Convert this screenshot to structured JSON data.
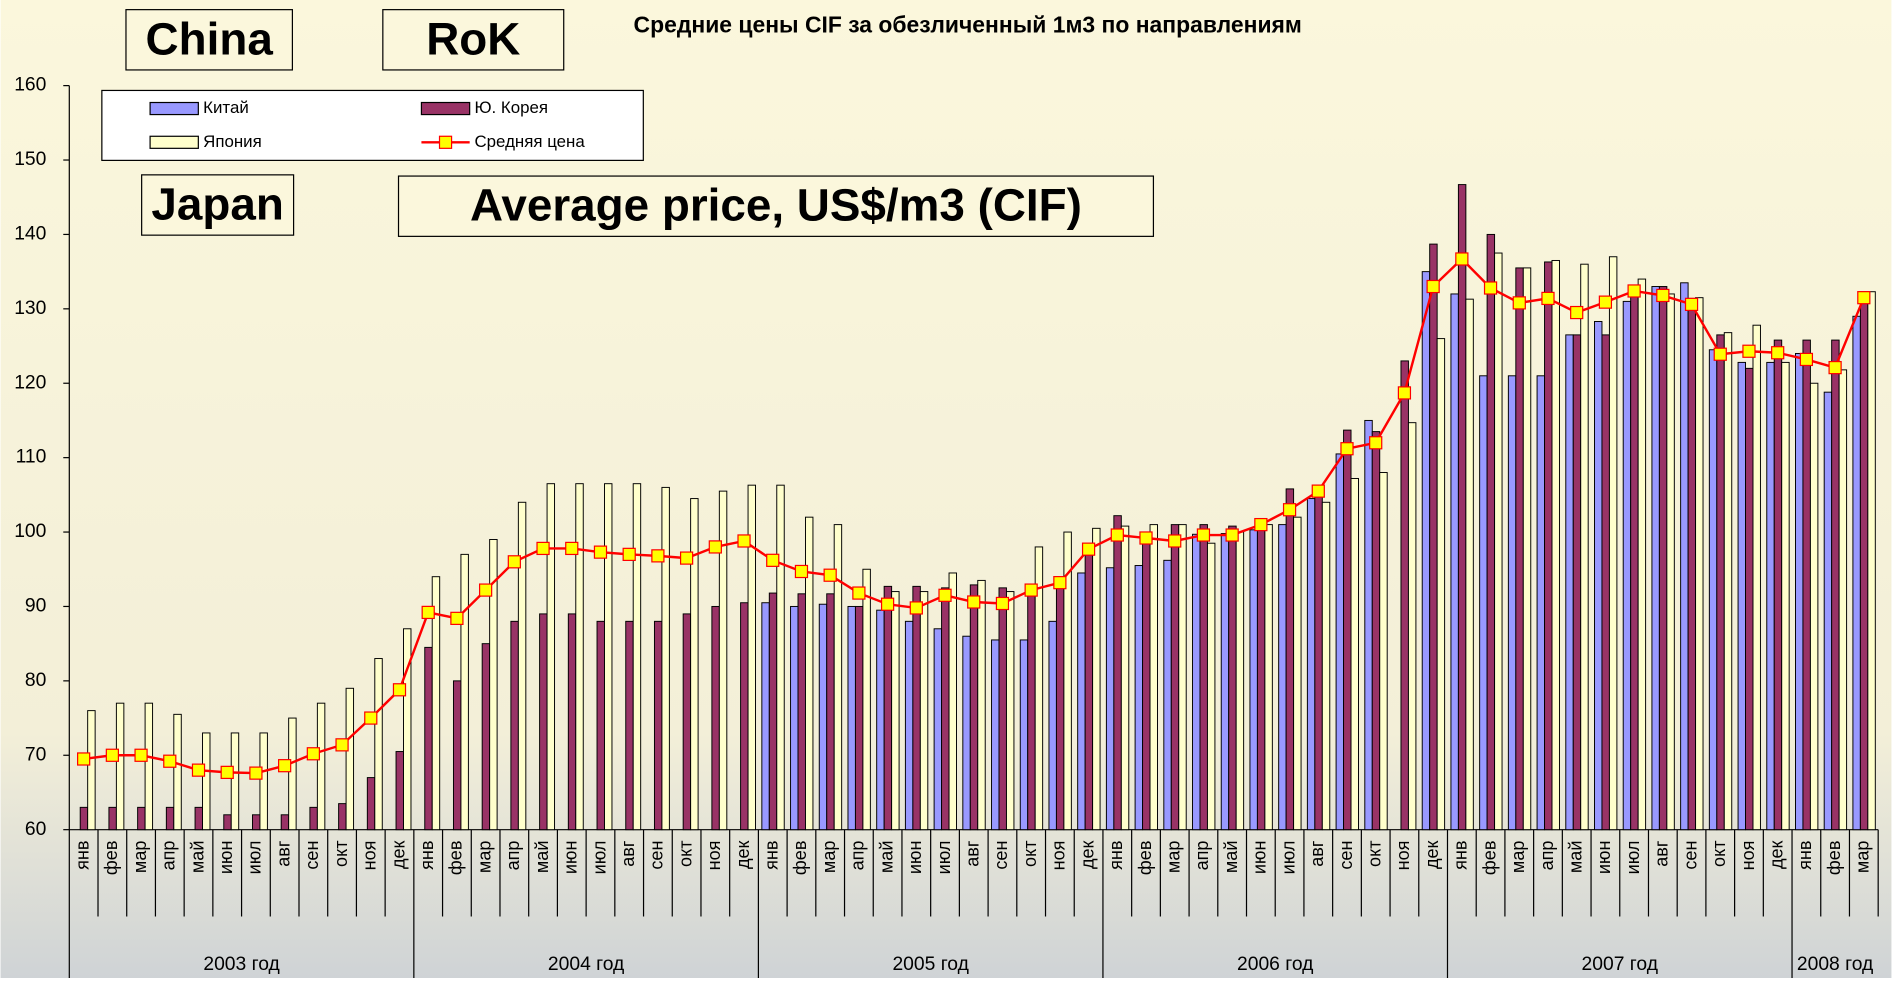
{
  "chart_data": {
    "type": "bar_line",
    "title": "Средние цены CIF за обезличенный 1м3 по направлениям",
    "annotations": [
      "China",
      "RoK",
      "Japan",
      "Average price, US$/m3 (CIF)"
    ],
    "categories": [
      "янв",
      "фев",
      "мар",
      "апр",
      "май",
      "июн",
      "июл",
      "авг",
      "сен",
      "окт",
      "ноя",
      "дек",
      "янв",
      "фев",
      "мар",
      "апр",
      "май",
      "июн",
      "июл",
      "авг",
      "сен",
      "окт",
      "ноя",
      "дек",
      "янв",
      "фев",
      "мар",
      "апр",
      "май",
      "июн",
      "июл",
      "авг",
      "сен",
      "окт",
      "ноя",
      "дек",
      "янв",
      "фев",
      "мар",
      "апр",
      "май",
      "июн",
      "июл",
      "авг",
      "сен",
      "окт",
      "ноя",
      "дек",
      "янв",
      "фев",
      "мар",
      "апр",
      "май",
      "июн",
      "июл",
      "авг",
      "сен",
      "окт",
      "ноя",
      "дек",
      "янв",
      "фев",
      "мар"
    ],
    "year_labels": [
      "2003 год",
      "2004 год",
      "2005 год",
      "2006 год",
      "2007 год",
      "2008 год"
    ],
    "series": [
      {
        "name": "Китай",
        "color": "#9999ff",
        "kind": "bar",
        "values": [
          null,
          null,
          null,
          null,
          null,
          null,
          null,
          null,
          null,
          null,
          null,
          null,
          null,
          null,
          null,
          null,
          null,
          null,
          null,
          null,
          null,
          null,
          null,
          null,
          90.5,
          90,
          90.3,
          90,
          89.5,
          88,
          87,
          86,
          85.5,
          85.5,
          88,
          94.5,
          95.2,
          95.5,
          96.2,
          99.7,
          99.8,
          100.3,
          101,
          104.5,
          110.5,
          115,
          null,
          135,
          132,
          121,
          121,
          121,
          126.5,
          128.3,
          131,
          133,
          133.5,
          124.5,
          122.8,
          122.8,
          124,
          118.8,
          129
        ]
      },
      {
        "name": "Ю. Корея",
        "color": "#993366",
        "kind": "bar",
        "values": [
          63,
          63,
          63,
          63,
          63,
          62,
          62,
          62,
          63,
          63.5,
          67,
          70.5,
          84.5,
          80,
          85,
          88,
          89,
          89,
          88,
          88,
          88,
          89,
          90,
          90.5,
          91.8,
          91.7,
          91.7,
          90,
          92.7,
          92.7,
          92.5,
          92.9,
          92.5,
          92,
          93.5,
          97.5,
          102.2,
          100,
          101,
          101,
          100.8,
          101,
          105.8,
          106,
          113.7,
          113.5,
          123,
          138.7,
          146.7,
          140,
          135.5,
          136.3,
          126.5,
          126.5,
          132.5,
          133,
          131.4,
          126.5,
          122,
          125.8,
          125.8,
          125.8,
          132.3
        ]
      },
      {
        "name": "Япония",
        "color": "#ffffcc",
        "kind": "bar",
        "values": [
          76,
          77,
          77,
          75.5,
          73,
          73,
          73,
          75,
          77,
          79,
          83,
          87,
          94,
          97,
          99,
          104,
          106.5,
          106.5,
          106.5,
          106.5,
          106,
          104.5,
          105.5,
          106.3,
          106.3,
          102,
          101,
          95,
          92,
          92,
          94.5,
          93.5,
          92,
          98,
          100,
          100.5,
          100.8,
          101,
          101,
          98.5,
          100,
          101,
          102,
          104,
          107.2,
          108,
          114.7,
          126,
          131.3,
          137.5,
          135.5,
          136.5,
          136,
          137,
          134,
          132,
          131.5,
          126.8,
          127.8,
          122.8,
          120,
          121.8,
          132.3
        ]
      },
      {
        "name": "Средняя цена",
        "color": "#ff0000",
        "marker_color": "#ffff00",
        "kind": "line",
        "values": [
          69.5,
          70,
          70,
          69.2,
          68,
          67.7,
          67.6,
          68.6,
          70.2,
          71.4,
          75,
          78.8,
          89.2,
          88.4,
          92.2,
          96,
          97.8,
          97.8,
          97.3,
          97,
          96.8,
          96.5,
          98,
          98.8,
          96.2,
          94.7,
          94.2,
          91.8,
          90.3,
          89.8,
          91.5,
          90.6,
          90.4,
          92.2,
          93.2,
          97.7,
          99.6,
          99.2,
          98.8,
          99.6,
          99.6,
          101,
          103,
          105.5,
          111.2,
          112,
          118.7,
          133,
          136.7,
          132.8,
          130.8,
          131.4,
          129.5,
          130.9,
          132.4,
          131.8,
          130.6,
          123.9,
          124.3,
          124.1,
          123.2,
          122.1,
          131.5
        ]
      }
    ],
    "ylim": [
      60,
      160
    ],
    "yticks": [
      60,
      70,
      80,
      90,
      100,
      110,
      120,
      130,
      140,
      150,
      160
    ]
  }
}
